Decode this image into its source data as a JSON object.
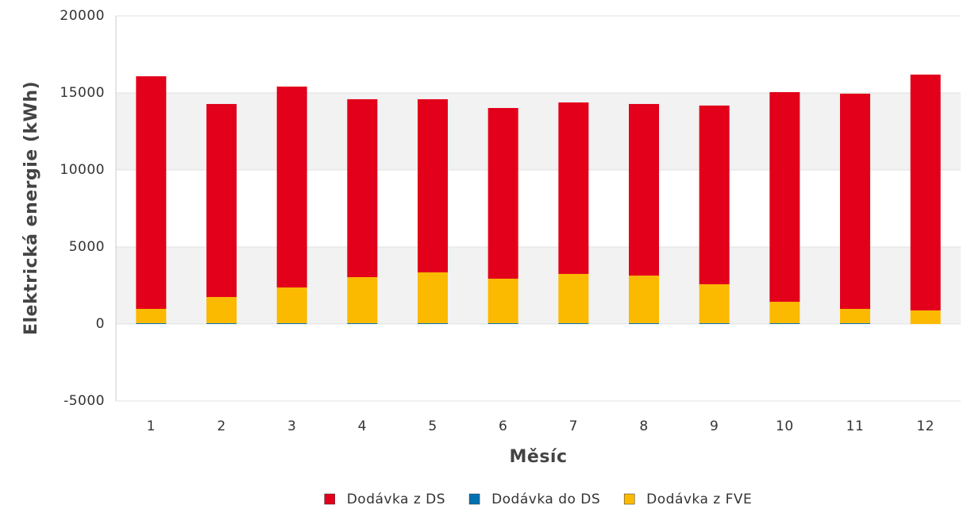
{
  "chart_data": {
    "type": "bar",
    "stacked": true,
    "xlabel": "Měsíc",
    "ylabel": "Elektrická energie (kWh)",
    "categories": [
      "1",
      "2",
      "3",
      "4",
      "5",
      "6",
      "7",
      "8",
      "9",
      "10",
      "11",
      "12"
    ],
    "series": [
      {
        "name": "Dodávka z DS",
        "color": "#e2001a",
        "values": [
          15100,
          12530,
          13040,
          11550,
          11240,
          11080,
          11130,
          11140,
          11600,
          13610,
          13970,
          15310
        ]
      },
      {
        "name": "Dodávka do DS",
        "color": "#0072b2",
        "values": [
          50,
          50,
          50,
          50,
          50,
          50,
          50,
          50,
          50,
          50,
          50,
          0
        ]
      },
      {
        "name": "Dodávka z FVE",
        "color": "#fbb900",
        "values": [
          930,
          1700,
          2320,
          2990,
          3300,
          2890,
          3200,
          3090,
          2530,
          1390,
          930,
          880
        ]
      }
    ],
    "stack_order": [
      1,
      2,
      0
    ],
    "ylim": [
      -5000,
      20000
    ],
    "yticks": [
      -5000,
      0,
      5000,
      10000,
      15000,
      20000
    ],
    "grid": "bands",
    "legend": "bottom"
  }
}
